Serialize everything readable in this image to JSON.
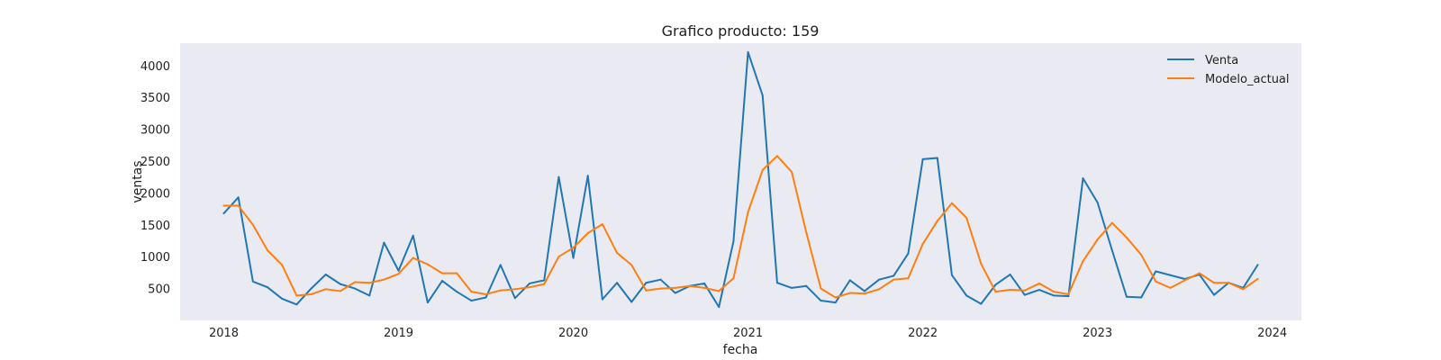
{
  "chart_data": {
    "type": "line",
    "title": "Grafico producto: 159",
    "xlabel": "fecha",
    "ylabel": "ventas",
    "x_ticks": [
      "2018",
      "2019",
      "2020",
      "2021",
      "2022",
      "2023",
      "2024"
    ],
    "y_ticks": [
      500,
      1000,
      1500,
      2000,
      2500,
      3000,
      3500,
      4000
    ],
    "xlim": [
      "2017-10",
      "2024-03"
    ],
    "ylim": [
      0,
      4350
    ],
    "grid": false,
    "legend_position": "top-right",
    "x": [
      "2018-01",
      "2018-02",
      "2018-03",
      "2018-04",
      "2018-05",
      "2018-06",
      "2018-07",
      "2018-08",
      "2018-09",
      "2018-10",
      "2018-11",
      "2018-12",
      "2019-01",
      "2019-02",
      "2019-03",
      "2019-04",
      "2019-05",
      "2019-06",
      "2019-07",
      "2019-08",
      "2019-09",
      "2019-10",
      "2019-11",
      "2019-12",
      "2020-01",
      "2020-02",
      "2020-03",
      "2020-04",
      "2020-05",
      "2020-06",
      "2020-07",
      "2020-08",
      "2020-09",
      "2020-10",
      "2020-11",
      "2020-12",
      "2021-01",
      "2021-02",
      "2021-03",
      "2021-04",
      "2021-05",
      "2021-06",
      "2021-07",
      "2021-08",
      "2021-09",
      "2021-10",
      "2021-11",
      "2021-12",
      "2022-01",
      "2022-02",
      "2022-03",
      "2022-04",
      "2022-05",
      "2022-06",
      "2022-07",
      "2022-08",
      "2022-09",
      "2022-10",
      "2022-11",
      "2022-12",
      "2023-01",
      "2023-02",
      "2023-03",
      "2023-04",
      "2023-05",
      "2023-06",
      "2023-07",
      "2023-08",
      "2023-09",
      "2023-10",
      "2023-11",
      "2023-12"
    ],
    "series": [
      {
        "name": "Venta",
        "color": "#1f77b4",
        "values": [
          1680,
          1930,
          610,
          520,
          340,
          250,
          500,
          720,
          570,
          500,
          390,
          1220,
          780,
          1330,
          280,
          620,
          450,
          310,
          360,
          870,
          350,
          580,
          630,
          2250,
          980,
          2270,
          330,
          590,
          290,
          590,
          640,
          430,
          540,
          580,
          210,
          1240,
          4210,
          3530,
          590,
          510,
          540,
          310,
          280,
          630,
          460,
          640,
          700,
          1050,
          2530,
          2550,
          710,
          390,
          260,
          560,
          720,
          400,
          480,
          390,
          380,
          2230,
          1850,
          1100,
          370,
          360,
          770,
          710,
          650,
          720,
          400,
          590,
          510,
          870
        ]
      },
      {
        "name": "Modelo_actual",
        "color": "#ff7f0e",
        "values": [
          1800,
          1800,
          1500,
          1100,
          870,
          390,
          410,
          490,
          460,
          600,
          590,
          640,
          730,
          980,
          880,
          740,
          740,
          450,
          410,
          470,
          490,
          520,
          570,
          1000,
          1140,
          1370,
          1510,
          1060,
          870,
          470,
          500,
          510,
          540,
          510,
          460,
          660,
          1700,
          2360,
          2580,
          2330,
          1380,
          500,
          360,
          430,
          420,
          490,
          640,
          660,
          1200,
          1560,
          1840,
          1610,
          890,
          450,
          480,
          470,
          580,
          450,
          410,
          930,
          1270,
          1530,
          1300,
          1030,
          610,
          510,
          630,
          740,
          590,
          590,
          490,
          650
        ]
      }
    ]
  }
}
